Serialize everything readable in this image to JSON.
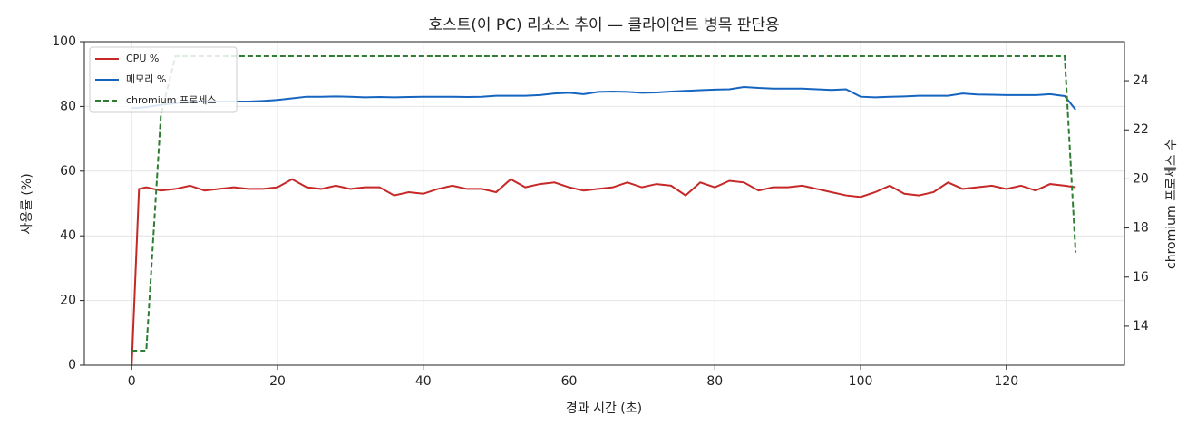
{
  "chart_data": {
    "type": "line",
    "title": "호스트(이 PC) 리소스 추이 — 클라이언트 병목 판단용",
    "xlabel": "경과 시간 (초)",
    "ylabel": "사용률 (%)",
    "y2label": "chromium 프로세스 수",
    "x": [
      0,
      1,
      2,
      4,
      6,
      8,
      10,
      12,
      14,
      16,
      18,
      20,
      22,
      24,
      26,
      28,
      30,
      32,
      34,
      36,
      38,
      40,
      42,
      44,
      46,
      48,
      50,
      52,
      54,
      56,
      58,
      60,
      62,
      64,
      66,
      68,
      70,
      72,
      74,
      76,
      78,
      80,
      82,
      84,
      86,
      88,
      90,
      92,
      94,
      96,
      98,
      100,
      102,
      104,
      106,
      108,
      110,
      112,
      114,
      116,
      118,
      120,
      122,
      124,
      126,
      128,
      129.5
    ],
    "series": [
      {
        "name": "CPU %",
        "color": "#c62828",
        "linestyle": "solid",
        "values": [
          0,
          54.5,
          55,
          54,
          54.5,
          55.5,
          54,
          54.5,
          55,
          54.5,
          54.5,
          55,
          57.5,
          55,
          54.5,
          55.5,
          54.5,
          55,
          55,
          52.5,
          53.5,
          53,
          54.5,
          55.5,
          54.5,
          54.5,
          53.5,
          57.5,
          55,
          56,
          56.5,
          55,
          54,
          54.5,
          55,
          56.5,
          55,
          56,
          55.5,
          52.5,
          56.5,
          55,
          57,
          56.5,
          54,
          55,
          55,
          55.5,
          54.5,
          53.5,
          52.5,
          52,
          53.5,
          55.5,
          53,
          52.5,
          53.5,
          56.5,
          54.5,
          55,
          55.5,
          54.5,
          55.5,
          54,
          56,
          55.5,
          55
        ]
      },
      {
        "name": "메모리 %",
        "color": "#1565c0",
        "linestyle": "solid",
        "values": [
          79.5,
          79.6,
          79.8,
          80.5,
          81,
          81.5,
          81.5,
          81.5,
          81.5,
          81.5,
          81.7,
          82,
          82.5,
          83,
          83,
          83.1,
          83,
          82.8,
          82.9,
          82.8,
          82.9,
          83,
          83,
          83,
          82.9,
          83,
          83.3,
          83.3,
          83.3,
          83.5,
          84,
          84.2,
          83.8,
          84.5,
          84.6,
          84.5,
          84.2,
          84.3,
          84.6,
          84.8,
          85,
          85.2,
          85.3,
          86,
          85.7,
          85.5,
          85.5,
          85.5,
          85.3,
          85.1,
          85.3,
          83,
          82.8,
          83,
          83.1,
          83.3,
          83.3,
          83.3,
          84,
          83.7,
          83.6,
          83.5,
          83.5,
          83.5,
          83.8,
          83.2,
          79
        ]
      },
      {
        "name": "chromium 프로세스",
        "color": "#2e7d32",
        "linestyle": "dashed",
        "axis": "y2",
        "values": [
          13,
          13,
          13,
          22.6,
          25,
          25,
          25,
          25,
          25,
          25,
          25,
          25,
          25,
          25,
          25,
          25,
          25,
          25,
          25,
          25,
          25,
          25,
          25,
          25,
          25,
          25,
          25,
          25,
          25,
          25,
          25,
          25,
          25,
          25,
          25,
          25,
          25,
          25,
          25,
          25,
          25,
          25,
          25,
          25,
          25,
          25,
          25,
          25,
          25,
          25,
          25,
          25,
          25,
          25,
          25,
          25,
          25,
          25,
          25,
          25,
          25,
          25,
          25,
          25,
          25,
          25,
          17
        ]
      }
    ],
    "xlim": [
      -6.5,
      136.2
    ],
    "xticks": [
      0,
      20,
      40,
      60,
      80,
      100,
      120
    ],
    "ylim": [
      0,
      100
    ],
    "yticks": [
      0,
      20,
      40,
      60,
      80,
      100
    ],
    "y2lim": [
      12.41,
      25.59
    ],
    "y2ticks": [
      14,
      16,
      18,
      20,
      22,
      24
    ],
    "grid": true,
    "legend": "upper left"
  }
}
